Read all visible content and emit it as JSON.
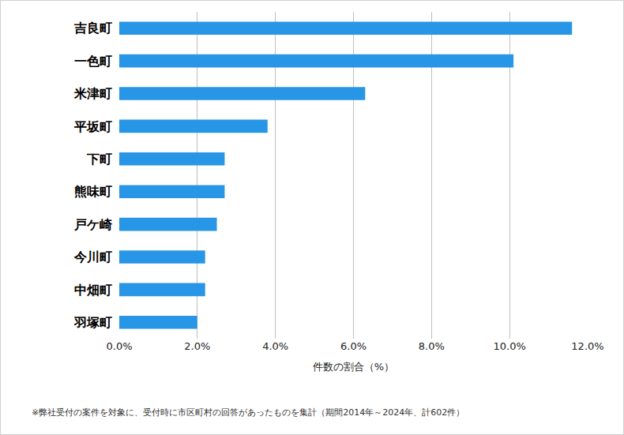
{
  "chart_data": {
    "type": "bar",
    "orientation": "horizontal",
    "categories": [
      "吉良町",
      "一色町",
      "米津町",
      "平坂町",
      "下町",
      "熊味町",
      "戸ケ崎",
      "今川町",
      "中畑町",
      "羽塚町"
    ],
    "values": [
      11.6,
      10.1,
      6.3,
      3.8,
      2.7,
      2.7,
      2.5,
      2.2,
      2.2,
      2.0
    ],
    "color": "#2896e6",
    "x_label": "件数の割合（%）",
    "xlim": [
      0,
      12
    ],
    "xticks": [
      {
        "value": 0,
        "label": "0.0%"
      },
      {
        "value": 2,
        "label": "2.0%"
      },
      {
        "value": 4,
        "label": "4.0%"
      },
      {
        "value": 6,
        "label": "6.0%"
      },
      {
        "value": 8,
        "label": "8.0%"
      },
      {
        "value": 10,
        "label": "10.0%"
      },
      {
        "value": 12,
        "label": "12.0%"
      }
    ],
    "grid": true,
    "data_labels": false,
    "annotations": [
      "※弊社受付の案件を対象に、受付時に市区町村の回答があったものを集計（期間2014年～2024年、計602件）"
    ]
  }
}
